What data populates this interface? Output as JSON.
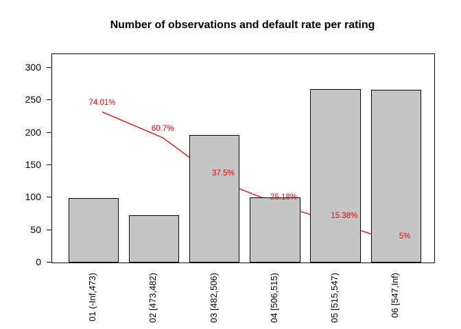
{
  "title": "Number of observations and default rate per rating",
  "colors": {
    "background": "#ffffff",
    "bar_fill": "#c5c5c5",
    "bar_border": "#000000",
    "line": "#e60000",
    "axis": "#000000"
  },
  "chart_data": {
    "type": "bar",
    "title": "Number of observations and default rate per rating",
    "categories": [
      "01 (-Inf,473)",
      "02 [473,482)",
      "03 [482,506)",
      "04 [506,515)",
      "05 [515,547)",
      "06 [547,Inf)"
    ],
    "series": [
      {
        "name": "Number of observations",
        "type": "bar",
        "values": [
          99,
          73,
          196,
          100,
          267,
          266
        ]
      },
      {
        "name": "Default rate per rating",
        "type": "line",
        "values_percent": [
          74.01,
          60.7,
          37.5,
          25.18,
          15.38,
          5
        ],
        "point_labels": [
          "74.01%",
          "60.7%",
          "37.5%",
          "25.18%",
          "15.38%",
          "5%"
        ]
      }
    ],
    "y_axis": {
      "ticks": [
        0,
        50,
        100,
        150,
        200,
        250,
        300
      ],
      "range": [
        0,
        300
      ],
      "label": ""
    },
    "secondary_axis": {
      "range_percent": [
        0,
        100
      ],
      "visible": false
    },
    "xlabel": "",
    "ylabel": "",
    "grid": false,
    "legend": false
  }
}
